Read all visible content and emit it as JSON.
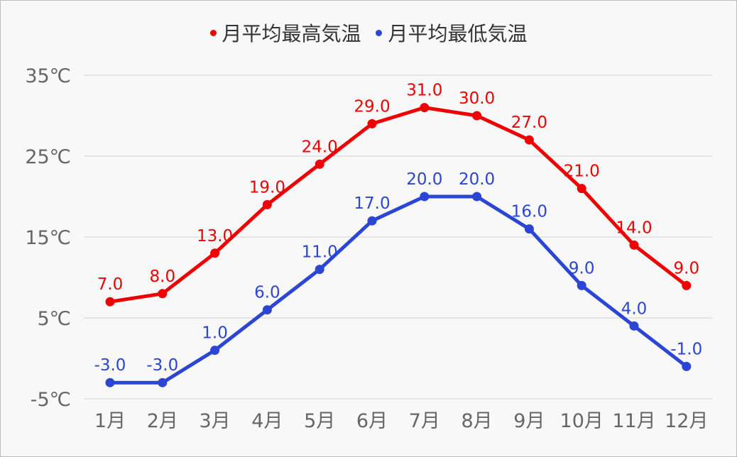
{
  "chart_data": {
    "type": "line",
    "title": "",
    "xlabel": "",
    "ylabel": "",
    "categories": [
      "1月",
      "2月",
      "3月",
      "4月",
      "5月",
      "6月",
      "7月",
      "8月",
      "9月",
      "10月",
      "11月",
      "12月"
    ],
    "series": [
      {
        "name": "月平均最高気温",
        "color": "#ee0000",
        "values": [
          7.0,
          8.0,
          13.0,
          19.0,
          24.0,
          29.0,
          31.0,
          30.0,
          27.0,
          21.0,
          14.0,
          9.0
        ]
      },
      {
        "name": "月平均最低気温",
        "color": "#2b45d4",
        "values": [
          -3.0,
          -3.0,
          1.0,
          6.0,
          11.0,
          17.0,
          20.0,
          20.0,
          16.0,
          9.0,
          4.0,
          -1.0
        ]
      }
    ],
    "yticks": [
      35,
      25,
      15,
      5,
      -5
    ],
    "ytick_labels": [
      "35℃",
      "25℃",
      "15℃",
      "5℃",
      "-5℃"
    ],
    "ylim": [
      -5,
      35
    ],
    "grid": true,
    "legend_position": "top"
  }
}
